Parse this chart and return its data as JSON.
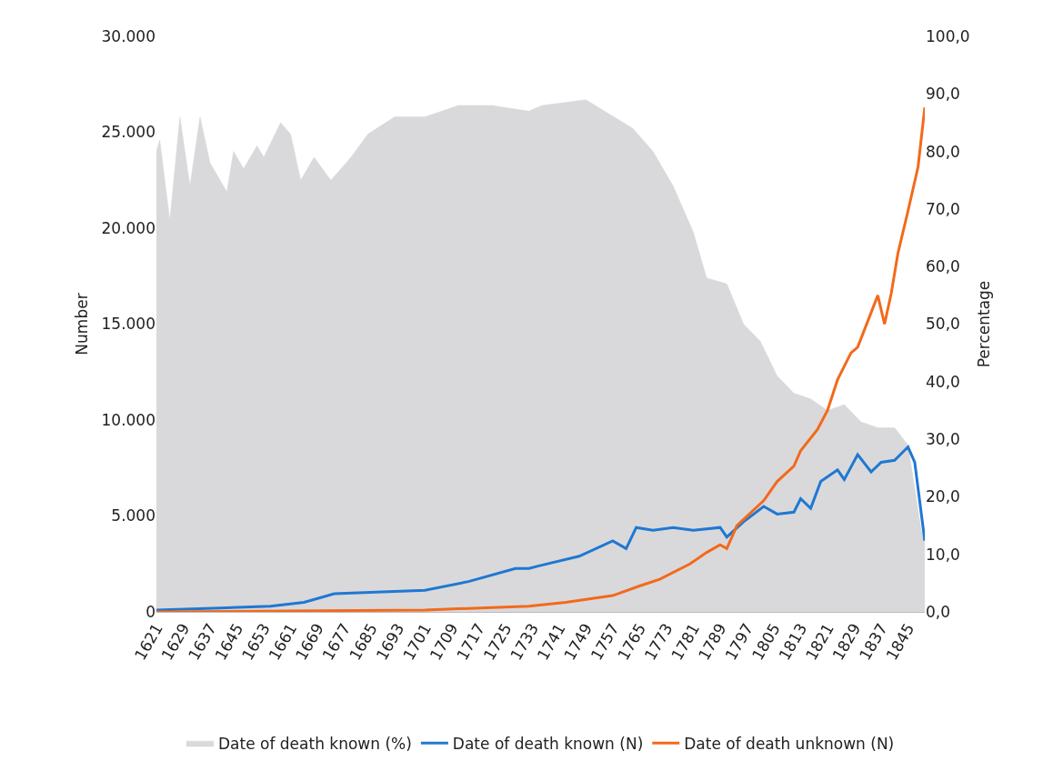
{
  "chart_data": {
    "type": "line",
    "xlabel": null,
    "ylabel": "Number",
    "y2label": "Percentage",
    "xlim": [
      1621,
      1850
    ],
    "xticks": [
      1621,
      1629,
      1637,
      1645,
      1653,
      1661,
      1669,
      1677,
      1685,
      1693,
      1701,
      1709,
      1717,
      1725,
      1733,
      1741,
      1749,
      1757,
      1765,
      1773,
      1781,
      1789,
      1797,
      1805,
      1813,
      1821,
      1829,
      1837,
      1845
    ],
    "ylim": [
      0,
      30000
    ],
    "yticks": [
      {
        "value": 0,
        "label": "0"
      },
      {
        "value": 5000,
        "label": "5.000"
      },
      {
        "value": 10000,
        "label": "10.000"
      },
      {
        "value": 15000,
        "label": "15.000"
      },
      {
        "value": 20000,
        "label": "20.000"
      },
      {
        "value": 25000,
        "label": "25.000"
      },
      {
        "value": 30000,
        "label": "30.000"
      }
    ],
    "y2lim": [
      0,
      100
    ],
    "y2ticks": [
      {
        "value": 0,
        "label": "0,0"
      },
      {
        "value": 10,
        "label": "10,0"
      },
      {
        "value": 20,
        "label": "20,0"
      },
      {
        "value": 30,
        "label": "30,0"
      },
      {
        "value": 40,
        "label": "40,0"
      },
      {
        "value": 50,
        "label": "50,0"
      },
      {
        "value": 60,
        "label": "60,0"
      },
      {
        "value": 70,
        "label": "70,0"
      },
      {
        "value": 80,
        "label": "80,0"
      },
      {
        "value": 90,
        "label": "90,0"
      },
      {
        "value": 100,
        "label": "100,0"
      }
    ],
    "grid": false,
    "legend": "bottom",
    "marker": "none",
    "line_style": "solid",
    "series": [
      {
        "name": "Date of death known (%)",
        "type": "area",
        "axis": "y2",
        "color": "#d9d9dc",
        "x": [
          1621,
          1622,
          1625,
          1628,
          1631,
          1634,
          1637,
          1642,
          1644,
          1647,
          1651,
          1653,
          1658,
          1661,
          1664,
          1668,
          1673,
          1679,
          1684,
          1692,
          1701,
          1711,
          1721,
          1732,
          1736,
          1749,
          1763,
          1769,
          1775,
          1781,
          1785,
          1791,
          1796,
          1801,
          1806,
          1811,
          1816,
          1821,
          1826,
          1831,
          1836,
          1841,
          1845,
          1849,
          1850
        ],
        "values": [
          80,
          82,
          68,
          86,
          74,
          86,
          78,
          73,
          80,
          77,
          81,
          79,
          85,
          83,
          75,
          79,
          75,
          79,
          83,
          86,
          86,
          88,
          88,
          87,
          88,
          89,
          84,
          80,
          74,
          66,
          58,
          57,
          50,
          47,
          41,
          38,
          37,
          35,
          36,
          33,
          32,
          32,
          29,
          14,
          12
        ]
      },
      {
        "name": "Date of death known (N)",
        "color": "#1f78d1",
        "x": [
          1621,
          1640,
          1655,
          1665,
          1674,
          1701,
          1714,
          1728,
          1732,
          1735,
          1747,
          1757,
          1761,
          1764,
          1769,
          1775,
          1781,
          1789,
          1791,
          1796,
          1802,
          1806,
          1811,
          1813,
          1816,
          1819,
          1824,
          1826,
          1830,
          1834,
          1837,
          1841,
          1845,
          1847,
          1850
        ],
        "values": [
          100,
          200,
          300,
          500,
          950,
          1130,
          1580,
          2260,
          2260,
          2400,
          2900,
          3700,
          3300,
          4400,
          4250,
          4400,
          4250,
          4400,
          3900,
          4700,
          5500,
          5100,
          5200,
          5900,
          5400,
          6800,
          7400,
          6900,
          8200,
          7300,
          7800,
          7900,
          8600,
          7800,
          3700
        ]
      },
      {
        "name": "Date of death unknown (N)",
        "color": "#f26a1b",
        "x": [
          1621,
          1660,
          1701,
          1732,
          1743,
          1757,
          1765,
          1771,
          1780,
          1785,
          1789,
          1791,
          1794,
          1802,
          1806,
          1811,
          1813,
          1818,
          1821,
          1824,
          1828,
          1830,
          1834,
          1836,
          1838,
          1840,
          1842,
          1845,
          1848,
          1850
        ],
        "values": [
          0,
          50,
          100,
          300,
          500,
          850,
          1350,
          1700,
          2500,
          3100,
          3500,
          3300,
          4500,
          5800,
          6800,
          7600,
          8400,
          9500,
          10500,
          12100,
          13500,
          13800,
          15600,
          16500,
          15000,
          16600,
          18700,
          20900,
          23200,
          26300
        ]
      }
    ]
  }
}
